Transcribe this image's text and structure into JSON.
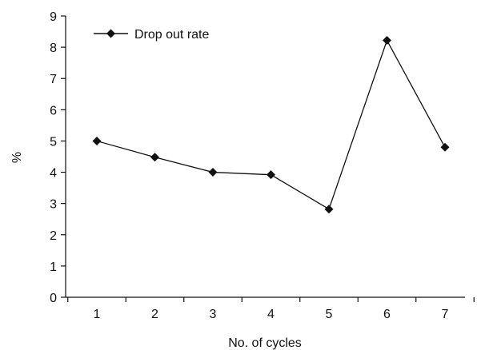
{
  "chart_data": {
    "type": "line",
    "title": "",
    "xlabel": "No. of cycles",
    "ylabel": "%",
    "categories": [
      "1",
      "2",
      "3",
      "4",
      "5",
      "6",
      "7"
    ],
    "x": [
      1,
      2,
      3,
      4,
      5,
      6,
      7
    ],
    "series": [
      {
        "name": "Drop out rate",
        "values": [
          5.0,
          4.48,
          4.0,
          3.92,
          2.82,
          8.22,
          4.8
        ],
        "marker": "diamond",
        "color": "#111111"
      }
    ],
    "ylim": [
      0,
      9
    ],
    "yticks": [
      "0",
      "1",
      "2",
      "3",
      "4",
      "5",
      "6",
      "7",
      "8",
      "9"
    ],
    "grid": false,
    "legend": "top-left"
  }
}
